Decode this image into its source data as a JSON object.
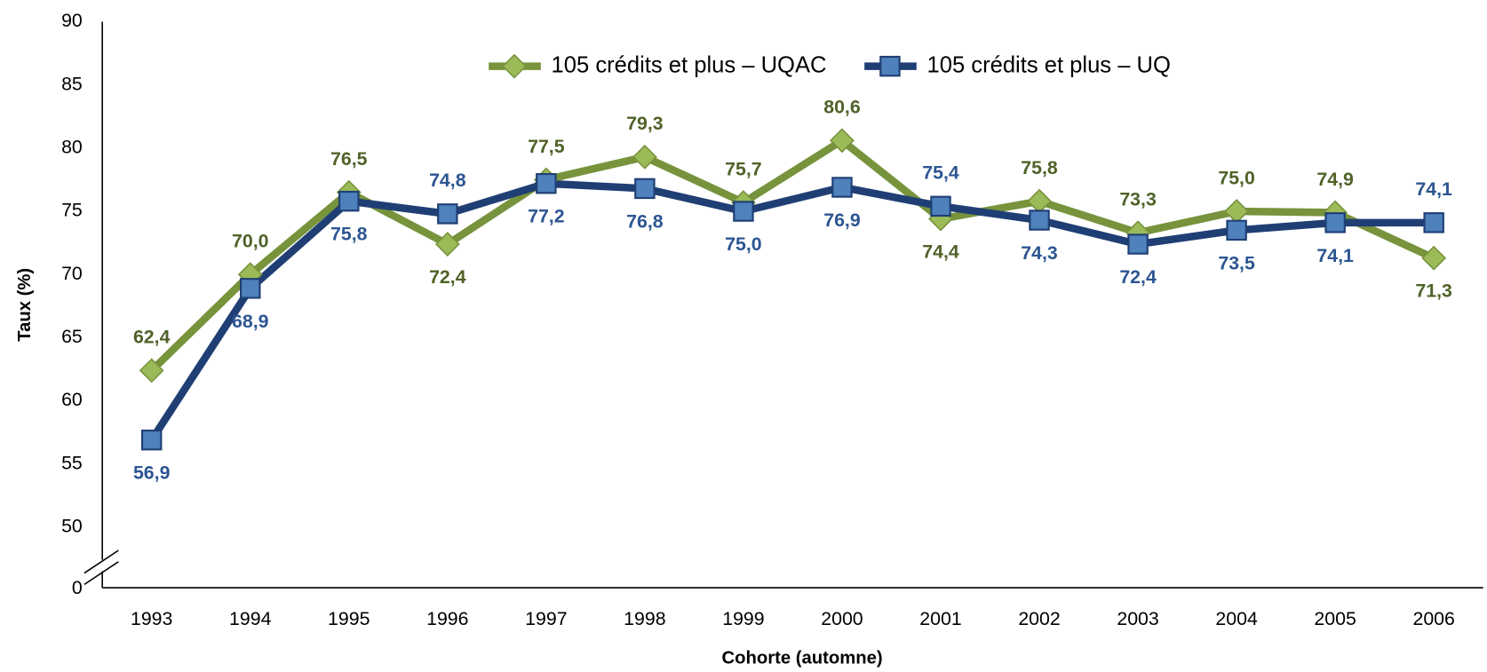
{
  "chart_data": {
    "type": "line",
    "categories": [
      "1993",
      "1994",
      "1995",
      "1996",
      "1997",
      "1998",
      "1999",
      "2000",
      "2001",
      "2002",
      "2003",
      "2004",
      "2005",
      "2006"
    ],
    "series": [
      {
        "name": "105 crédits et plus – UQAC",
        "color": "#77933c",
        "marker_color": "#9bbb59",
        "label_color": "#4f6228",
        "marker": "diamond",
        "values": [
          62.4,
          70.0,
          76.5,
          72.4,
          77.5,
          79.3,
          75.7,
          80.6,
          74.4,
          75.8,
          73.3,
          75.0,
          74.9,
          71.3
        ],
        "value_labels": [
          "62,4",
          "70,0",
          "76,5",
          "72,4",
          "77,5",
          "79,3",
          "75,7",
          "80,6",
          "74,4",
          "75,8",
          "73,3",
          "75,0",
          "74,9",
          "71,3"
        ]
      },
      {
        "name": "105 crédits et plus – UQ",
        "color": "#1f3f74",
        "marker_color": "#4f81bd",
        "label_color": "#2c5592",
        "marker": "square",
        "values": [
          56.9,
          68.9,
          75.8,
          74.8,
          77.2,
          76.8,
          75.0,
          76.9,
          75.4,
          74.3,
          72.4,
          73.5,
          74.1,
          74.1
        ],
        "value_labels": [
          "56,9",
          "68,9",
          "75,8",
          "74,8",
          "77,2",
          "76,8",
          "75,0",
          "76,9",
          "75,4",
          "74,3",
          "72,4",
          "73,5",
          "74,1",
          "74,1"
        ]
      }
    ],
    "ylabel": "Taux (%)",
    "xlabel": "Cohorte (automne)",
    "ylim": [
      0,
      90
    ],
    "yticks": [
      0,
      50,
      55,
      60,
      65,
      70,
      75,
      80,
      85,
      90
    ],
    "axis_break": [
      0,
      50
    ],
    "legend": "top",
    "grid": false
  }
}
